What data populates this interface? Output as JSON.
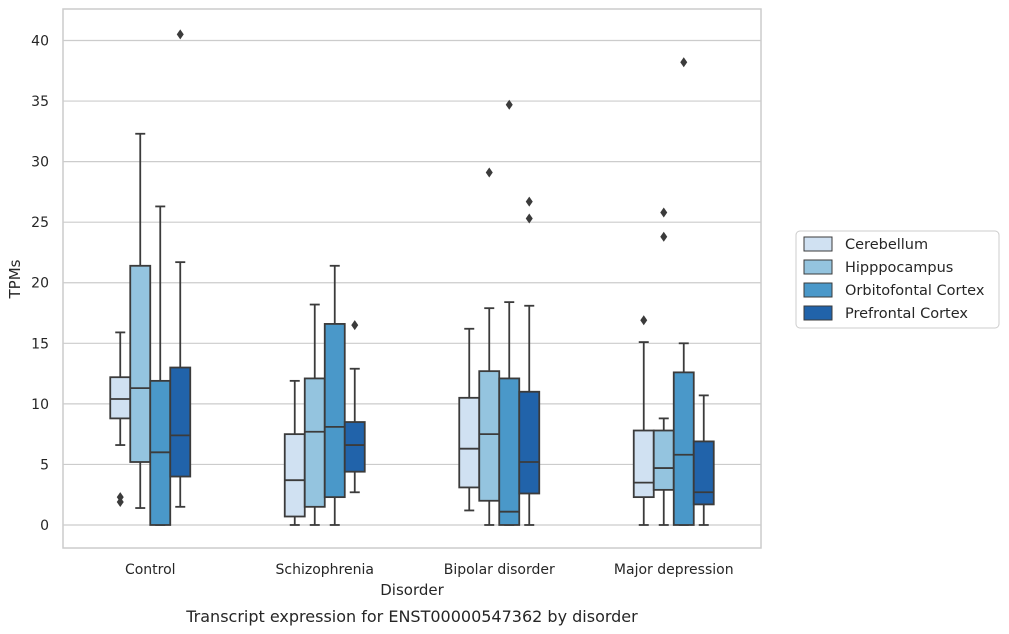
{
  "chart_data": {
    "type": "box",
    "xlabel": "Disorder",
    "ylabel": "TPMs",
    "caption": "Transcript expression for ENST00000547362 by disorder",
    "ylim": [
      -1.9,
      42.6
    ],
    "yticks": [
      0,
      5,
      10,
      15,
      20,
      25,
      30,
      35,
      40
    ],
    "grid": "horizontal",
    "legend_position": "right",
    "categories": [
      "Control",
      "Schizophrenia",
      "Bipolar disorder",
      "Major depression"
    ],
    "series": [
      {
        "name": "Cerebellum",
        "color": "#d0e1f2",
        "boxes": [
          {
            "whisker_low": 6.6,
            "q1": 8.8,
            "median": 10.4,
            "q3": 12.2,
            "whisker_high": 15.9,
            "outliers": [
              1.9,
              2.3
            ]
          },
          {
            "whisker_low": 0.0,
            "q1": 0.7,
            "median": 3.7,
            "q3": 7.5,
            "whisker_high": 11.9,
            "outliers": []
          },
          {
            "whisker_low": 1.2,
            "q1": 3.1,
            "median": 6.3,
            "q3": 10.5,
            "whisker_high": 16.2,
            "outliers": []
          },
          {
            "whisker_low": 0.0,
            "q1": 2.3,
            "median": 3.5,
            "q3": 7.8,
            "whisker_high": 15.1,
            "outliers": [
              16.9
            ]
          }
        ]
      },
      {
        "name": "Hipppocampus",
        "color": "#94c4df",
        "boxes": [
          {
            "whisker_low": 1.4,
            "q1": 5.2,
            "median": 11.3,
            "q3": 21.4,
            "whisker_high": 32.3,
            "outliers": []
          },
          {
            "whisker_low": 0.0,
            "q1": 1.5,
            "median": 7.7,
            "q3": 12.1,
            "whisker_high": 18.2,
            "outliers": []
          },
          {
            "whisker_low": 0.0,
            "q1": 2.0,
            "median": 7.5,
            "q3": 12.7,
            "whisker_high": 17.9,
            "outliers": [
              29.1
            ]
          },
          {
            "whisker_low": 0.0,
            "q1": 2.9,
            "median": 4.7,
            "q3": 7.8,
            "whisker_high": 8.8,
            "outliers": [
              23.8,
              25.8
            ]
          }
        ]
      },
      {
        "name": "Orbitofontal Cortex",
        "color": "#4a98c9",
        "boxes": [
          {
            "whisker_low": 0.0,
            "q1": 0.0,
            "median": 6.0,
            "q3": 11.9,
            "whisker_high": 26.3,
            "outliers": []
          },
          {
            "whisker_low": 0.0,
            "q1": 2.3,
            "median": 8.1,
            "q3": 16.6,
            "whisker_high": 21.4,
            "outliers": []
          },
          {
            "whisker_low": 0.0,
            "q1": 0.0,
            "median": 1.1,
            "q3": 12.1,
            "whisker_high": 18.4,
            "outliers": [
              34.7
            ]
          },
          {
            "whisker_low": 0.0,
            "q1": 0.0,
            "median": 5.8,
            "q3": 12.6,
            "whisker_high": 15.0,
            "outliers": [
              38.2
            ]
          }
        ]
      },
      {
        "name": "Prefrontal Cortex",
        "color": "#2163aa",
        "boxes": [
          {
            "whisker_low": 1.5,
            "q1": 4.0,
            "median": 7.4,
            "q3": 13.0,
            "whisker_high": 21.7,
            "outliers": [
              40.5
            ]
          },
          {
            "whisker_low": 2.7,
            "q1": 4.4,
            "median": 6.6,
            "q3": 8.5,
            "whisker_high": 12.9,
            "outliers": [
              16.5
            ]
          },
          {
            "whisker_low": 0.0,
            "q1": 2.6,
            "median": 5.2,
            "q3": 11.0,
            "whisker_high": 18.1,
            "outliers": [
              25.3,
              26.7
            ]
          },
          {
            "whisker_low": 0.0,
            "q1": 1.7,
            "median": 2.7,
            "q3": 6.9,
            "whisker_high": 10.7,
            "outliers": []
          }
        ]
      }
    ]
  }
}
